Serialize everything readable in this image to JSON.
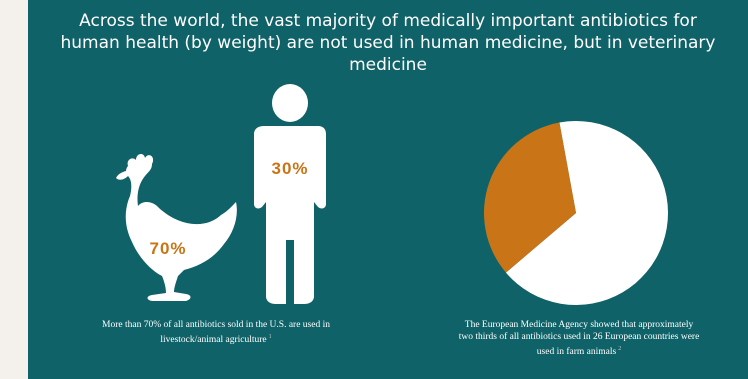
{
  "title": {
    "line1": "Across the world, the vast majority of medically important antibiotics for",
    "line2": "human health (by weight) are not used in human medicine, but in veterinary",
    "line3": "medicine"
  },
  "colors": {
    "background": "#0f6268",
    "accent": "#c97416",
    "figure": "#ffffff"
  },
  "chart_data": [
    {
      "type": "pictogram",
      "figures": [
        {
          "icon": "chicken-icon",
          "label": "70%",
          "value": 70
        },
        {
          "icon": "person-icon",
          "label": "30%",
          "value": 30
        }
      ],
      "caption": "More than 70% of all antibiotics sold in the U.S. are used in livestock/animal agriculture",
      "caption_ref": "1"
    },
    {
      "type": "pie",
      "slices": [
        {
          "value": 0.6667,
          "color": "#ffffff"
        },
        {
          "value": 0.3333,
          "color": "#c97416"
        }
      ],
      "caption": "The European Medicine Agency showed that approximately two thirds of all antibiotics used in 26 European countries were used in farm animals",
      "caption_ref": "2"
    }
  ],
  "captions": {
    "left_line1": "More than 70% of all antibiotics sold in the U.S. are used in",
    "left_line2": "livestock/animal agriculture",
    "left_ref": "1",
    "right_line1": "The European Medicine Agency showed that approximately",
    "right_line2": "two thirds of all antibiotics used in 26 European countries were",
    "right_line3": "used in farm animals",
    "right_ref": "2"
  }
}
